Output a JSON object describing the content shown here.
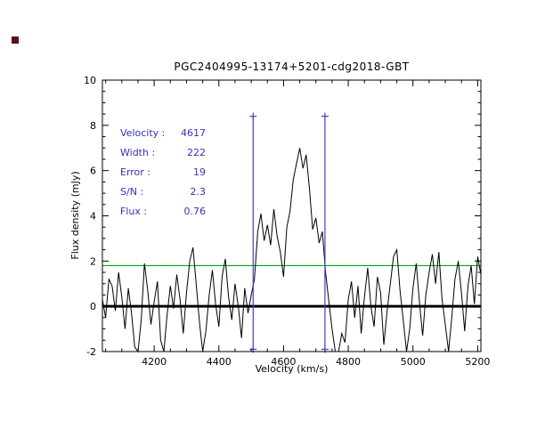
{
  "colors": {
    "annotation_text": "#3333bb",
    "signal_lines": "#4040c0",
    "threshold_line": "#00a800",
    "spectrum": "#000000",
    "baseline": "#000000",
    "frame": "#000000",
    "artifact": "#5c1010"
  },
  "chart_data": {
    "type": "line",
    "title": "PGC2404995-13174+5201-cdg2018-GBT",
    "xlabel": "Velocity (km/s)",
    "ylabel": "Flux density (mJy)",
    "xlim": [
      4040,
      5210
    ],
    "ylim": [
      -2,
      10
    ],
    "x_ticks": [
      4200,
      4400,
      4600,
      4800,
      5000,
      5200
    ],
    "y_ticks": [
      -2,
      0,
      2,
      4,
      6,
      8,
      10
    ],
    "x_minor_step": 50,
    "y_minor_step": 0.5,
    "grid": false,
    "legend": "none",
    "series": [
      {
        "name": "spectrum",
        "x_start": 4040,
        "x_step": 10,
        "values": [
          0.3,
          -0.5,
          1.2,
          0.9,
          -0.2,
          1.5,
          0.4,
          -1.0,
          0.8,
          -0.3,
          -1.8,
          -2.4,
          -0.6,
          1.9,
          0.7,
          -0.8,
          0.2,
          1.1,
          -1.5,
          -2.2,
          -0.4,
          0.9,
          -0.1,
          1.4,
          0.3,
          -1.2,
          0.6,
          2.0,
          2.6,
          1.0,
          -0.7,
          -2.0,
          -1.1,
          0.5,
          1.6,
          0.1,
          -0.9,
          1.3,
          2.1,
          0.4,
          -0.6,
          1.0,
          0.0,
          -1.4,
          0.8,
          -0.3,
          0.5,
          1.2,
          3.3,
          4.1,
          2.9,
          3.6,
          2.7,
          4.3,
          3.1,
          2.4,
          1.3,
          3.5,
          4.2,
          5.6,
          6.3,
          7.0,
          6.1,
          6.7,
          5.2,
          3.4,
          3.9,
          2.8,
          3.3,
          1.5,
          0.2,
          -1.0,
          -2.3,
          -2.6,
          -1.2,
          -1.6,
          0.3,
          1.1,
          -0.5,
          0.9,
          -1.2,
          0.4,
          1.7,
          0.0,
          -0.9,
          1.3,
          0.6,
          -1.7,
          -0.2,
          1.0,
          2.2,
          2.5,
          0.7,
          -0.6,
          -2.1,
          -1.0,
          0.8,
          1.9,
          0.2,
          -1.3,
          0.5,
          1.5,
          2.3,
          1.0,
          2.4,
          0.3,
          -0.8,
          -2.2,
          -0.5,
          1.2,
          2.0,
          0.6,
          -1.1,
          0.9,
          1.8,
          0.1,
          2.2,
          1.4
        ]
      }
    ],
    "overlays": {
      "baseline": {
        "y": 0,
        "stroke_width": 3
      },
      "threshold": {
        "y": 1.8
      },
      "signal_window": {
        "x1": 4506,
        "x2": 4728,
        "y_top": 8.4,
        "y_bottom": -1.9,
        "marker": "plus"
      }
    },
    "annotations": [
      {
        "label": "Velocity :",
        "value": "4617"
      },
      {
        "label": "Width :",
        "value": "222"
      },
      {
        "label": "Error :",
        "value": "19"
      },
      {
        "label": "S/N :",
        "value": "2.3"
      },
      {
        "label": "Flux :",
        "value": "0.76"
      }
    ]
  }
}
